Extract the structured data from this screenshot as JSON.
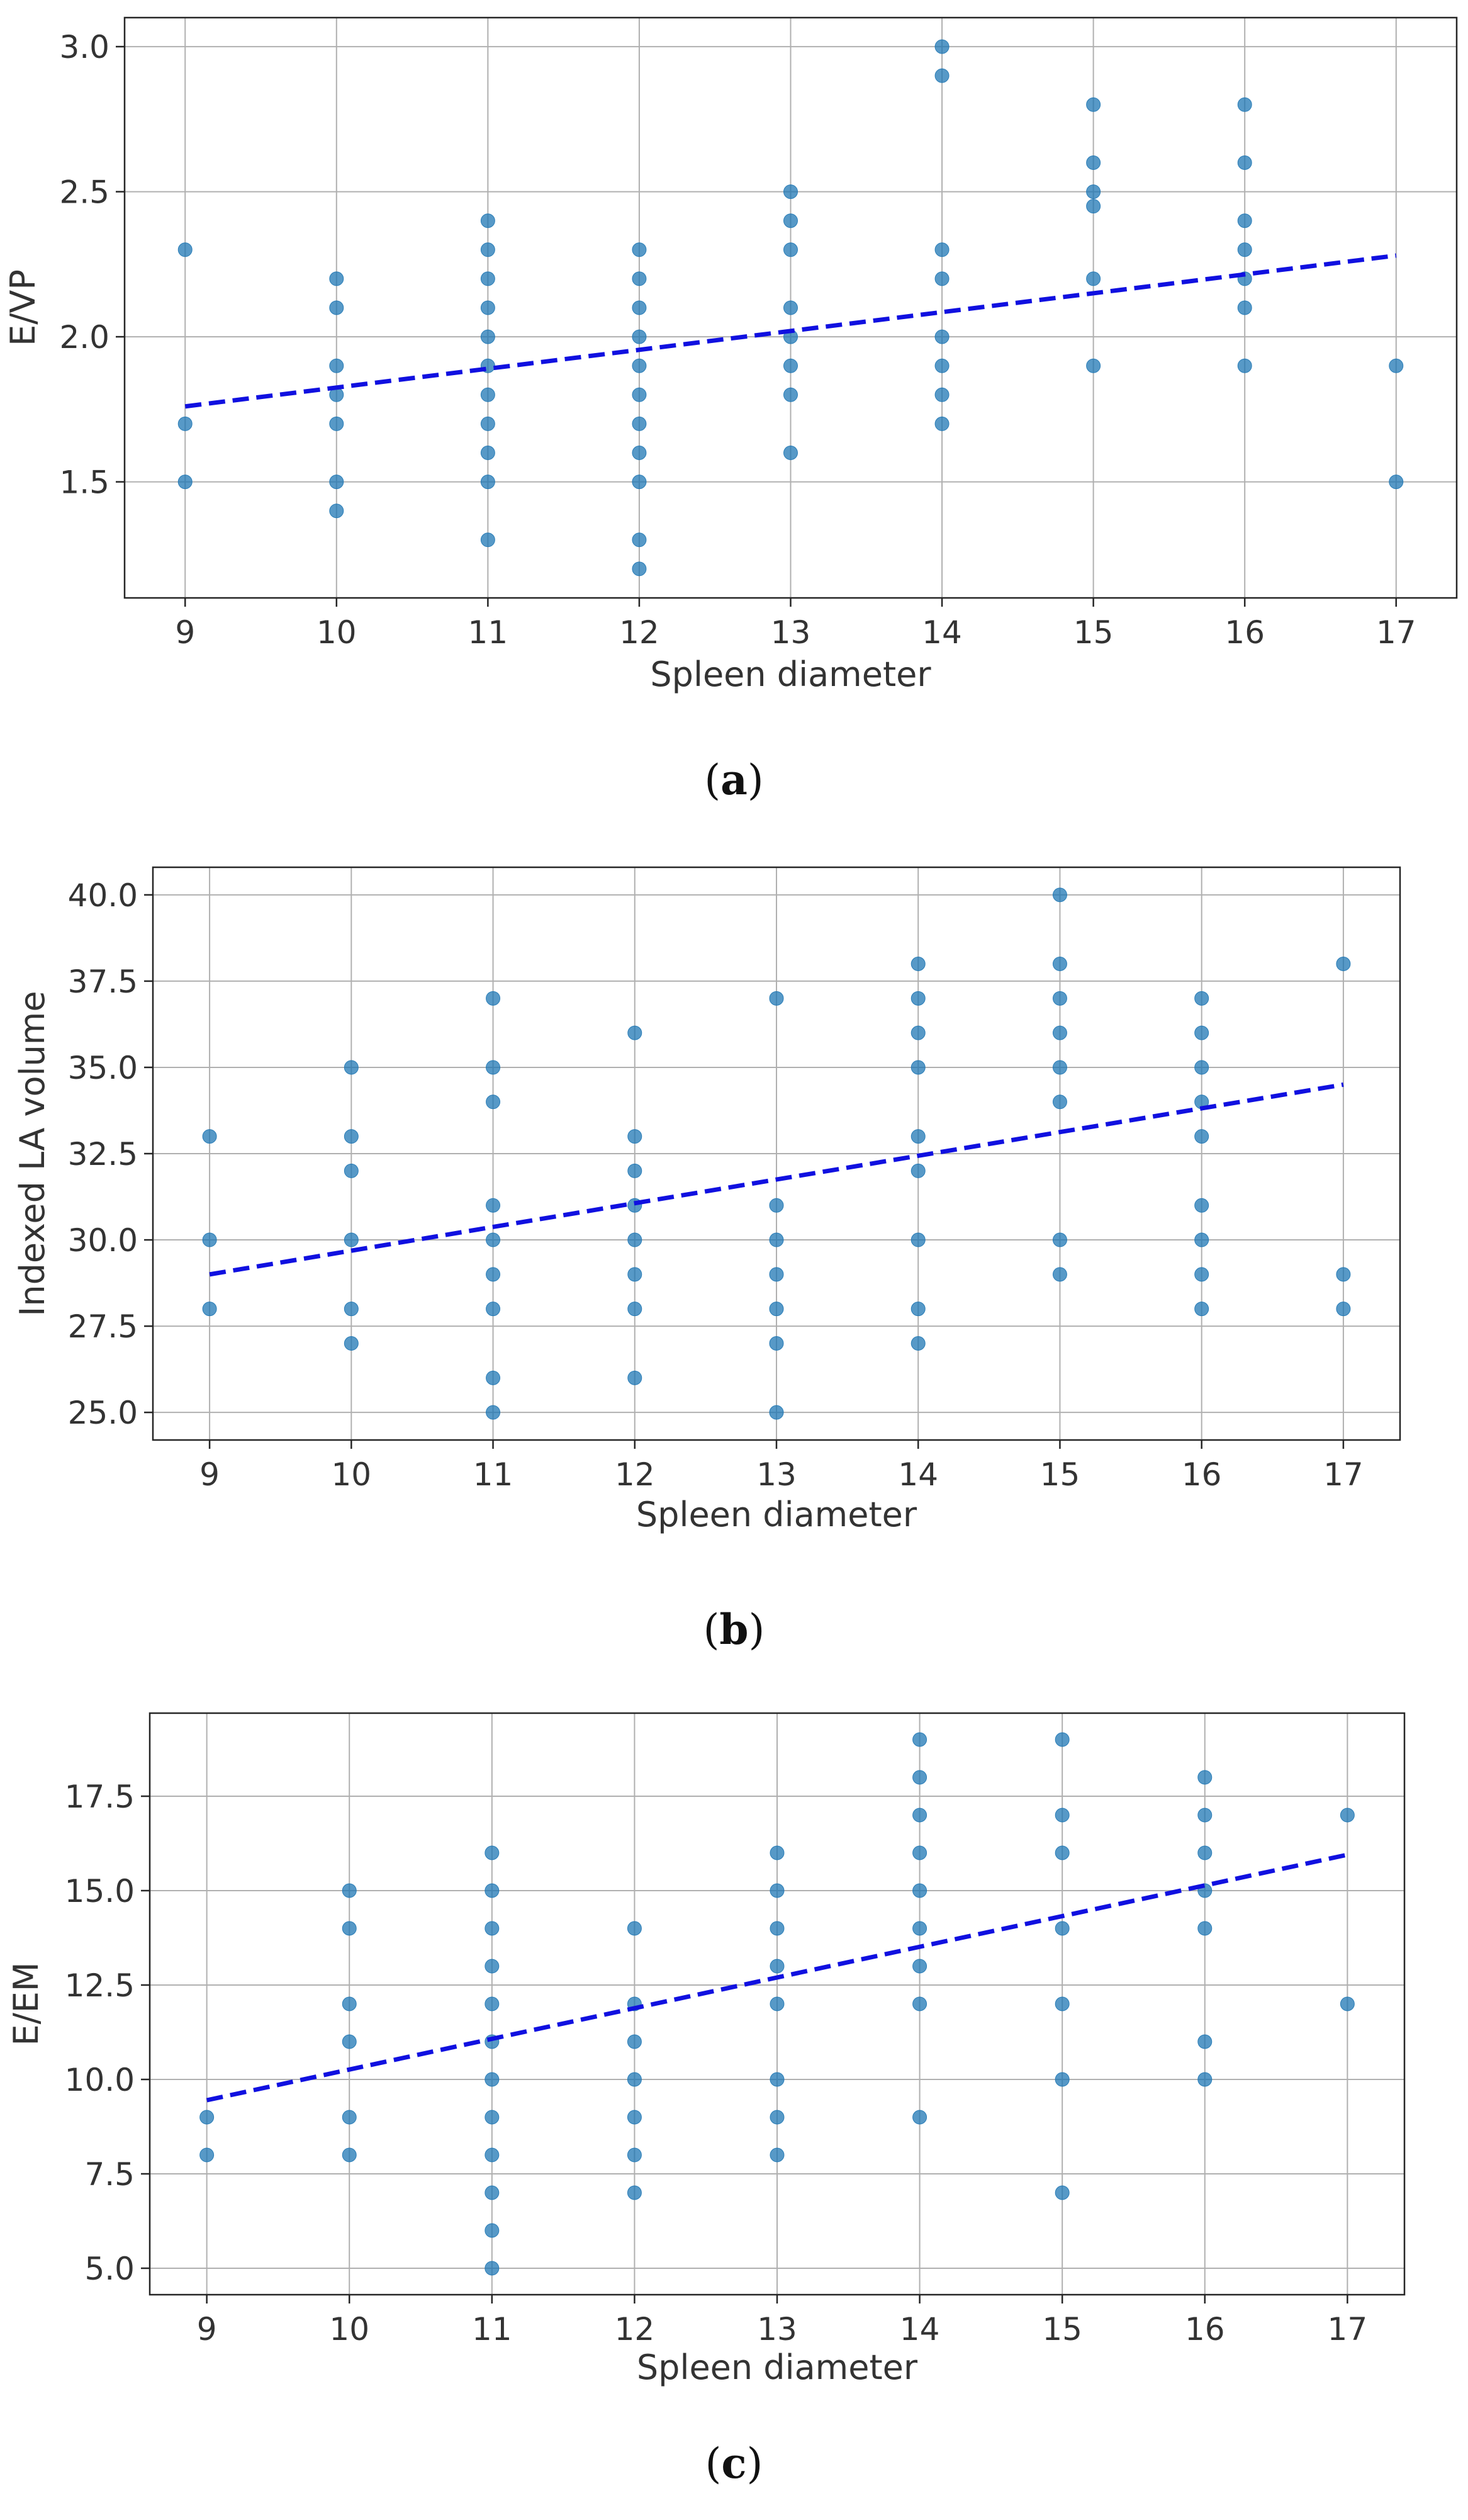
{
  "chart_data": [
    {
      "id": "a",
      "type": "scatter",
      "caption_label": "a",
      "xlabel": "Spleen diameter",
      "ylabel": "E/VP",
      "xlim": [
        8.6,
        17.4
      ],
      "ylim": [
        1.1,
        3.1
      ],
      "xticks": [
        9,
        10,
        11,
        12,
        13,
        14,
        15,
        16,
        17
      ],
      "yticks": [
        1.5,
        2.0,
        2.5,
        3.0
      ],
      "ytick_labels": [
        "1.5",
        "2.0",
        "2.5",
        "3.0"
      ],
      "trend": {
        "x": [
          9,
          17
        ],
        "y": [
          1.76,
          2.28
        ]
      },
      "points": [
        [
          9,
          2.3
        ],
        [
          9,
          1.7
        ],
        [
          9,
          1.5
        ],
        [
          10,
          2.2
        ],
        [
          10,
          2.1
        ],
        [
          10,
          1.9
        ],
        [
          10,
          1.8
        ],
        [
          10,
          1.7
        ],
        [
          10,
          1.5
        ],
        [
          10,
          1.4
        ],
        [
          11,
          2.4
        ],
        [
          11,
          2.3
        ],
        [
          11,
          2.2
        ],
        [
          11,
          2.1
        ],
        [
          11,
          2.0
        ],
        [
          11,
          1.9
        ],
        [
          11,
          1.8
        ],
        [
          11,
          1.7
        ],
        [
          11,
          1.6
        ],
        [
          11,
          1.5
        ],
        [
          11,
          1.3
        ],
        [
          12,
          2.3
        ],
        [
          12,
          2.2
        ],
        [
          12,
          2.1
        ],
        [
          12,
          2.0
        ],
        [
          12,
          1.9
        ],
        [
          12,
          1.8
        ],
        [
          12,
          1.7
        ],
        [
          12,
          1.6
        ],
        [
          12,
          1.5
        ],
        [
          12,
          1.3
        ],
        [
          12,
          1.2
        ],
        [
          13,
          2.5
        ],
        [
          13,
          2.4
        ],
        [
          13,
          2.3
        ],
        [
          13,
          2.1
        ],
        [
          13,
          2.0
        ],
        [
          13,
          1.9
        ],
        [
          13,
          1.8
        ],
        [
          13,
          1.6
        ],
        [
          14,
          3.0
        ],
        [
          14,
          2.9
        ],
        [
          14,
          2.3
        ],
        [
          14,
          2.2
        ],
        [
          14,
          2.0
        ],
        [
          14,
          1.9
        ],
        [
          14,
          1.8
        ],
        [
          14,
          1.7
        ],
        [
          15,
          2.8
        ],
        [
          15,
          2.6
        ],
        [
          15,
          2.5
        ],
        [
          15,
          2.45
        ],
        [
          15,
          2.2
        ],
        [
          15,
          1.9
        ],
        [
          16,
          2.8
        ],
        [
          16,
          2.6
        ],
        [
          16,
          2.4
        ],
        [
          16,
          2.3
        ],
        [
          16,
          2.2
        ],
        [
          16,
          2.1
        ],
        [
          16,
          1.9
        ],
        [
          17,
          1.9
        ],
        [
          17,
          1.5
        ]
      ]
    },
    {
      "id": "b",
      "type": "scatter",
      "caption_label": "b",
      "xlabel": "Spleen diameter",
      "ylabel": "Indexed LA volume",
      "xlim": [
        8.6,
        17.4
      ],
      "ylim": [
        24.2,
        40.8
      ],
      "xticks": [
        9,
        10,
        11,
        12,
        13,
        14,
        15,
        16,
        17
      ],
      "yticks": [
        25.0,
        27.5,
        30.0,
        32.5,
        35.0,
        37.5,
        40.0
      ],
      "ytick_labels": [
        "25.0",
        "27.5",
        "30.0",
        "32.5",
        "35.0",
        "37.5",
        "40.0"
      ],
      "trend": {
        "x": [
          9,
          17
        ],
        "y": [
          29.0,
          34.5
        ]
      },
      "points": [
        [
          9,
          33
        ],
        [
          9,
          30
        ],
        [
          9,
          28
        ],
        [
          10,
          35
        ],
        [
          10,
          33
        ],
        [
          10,
          32
        ],
        [
          10,
          30
        ],
        [
          10,
          28
        ],
        [
          10,
          27
        ],
        [
          11,
          37
        ],
        [
          11,
          35
        ],
        [
          11,
          34
        ],
        [
          11,
          31
        ],
        [
          11,
          30
        ],
        [
          11,
          29
        ],
        [
          11,
          28
        ],
        [
          11,
          26
        ],
        [
          11,
          25
        ],
        [
          12,
          36
        ],
        [
          12,
          33
        ],
        [
          12,
          32
        ],
        [
          12,
          31
        ],
        [
          12,
          30
        ],
        [
          12,
          29
        ],
        [
          12,
          28
        ],
        [
          12,
          26
        ],
        [
          13,
          37
        ],
        [
          13,
          31
        ],
        [
          13,
          30
        ],
        [
          13,
          29
        ],
        [
          13,
          28
        ],
        [
          13,
          27
        ],
        [
          13,
          25
        ],
        [
          14,
          38
        ],
        [
          14,
          37
        ],
        [
          14,
          36
        ],
        [
          14,
          35
        ],
        [
          14,
          33
        ],
        [
          14,
          32
        ],
        [
          14,
          30
        ],
        [
          14,
          28
        ],
        [
          14,
          27
        ],
        [
          15,
          40
        ],
        [
          15,
          38
        ],
        [
          15,
          37
        ],
        [
          15,
          36
        ],
        [
          15,
          35
        ],
        [
          15,
          34
        ],
        [
          15,
          30
        ],
        [
          15,
          29
        ],
        [
          16,
          37
        ],
        [
          16,
          36
        ],
        [
          16,
          35
        ],
        [
          16,
          34
        ],
        [
          16,
          33
        ],
        [
          16,
          31
        ],
        [
          16,
          30
        ],
        [
          16,
          29
        ],
        [
          16,
          28
        ],
        [
          17,
          38
        ],
        [
          17,
          29
        ],
        [
          17,
          28
        ]
      ]
    },
    {
      "id": "c",
      "type": "scatter",
      "caption_label": "c",
      "xlabel": "Spleen diameter",
      "ylabel": "E/EM",
      "xlim": [
        8.6,
        17.4
      ],
      "ylim": [
        4.3,
        19.7
      ],
      "xticks": [
        9,
        10,
        11,
        12,
        13,
        14,
        15,
        16,
        17
      ],
      "yticks": [
        5.0,
        7.5,
        10.0,
        12.5,
        15.0,
        17.5
      ],
      "ytick_labels": [
        "5.0",
        "7.5",
        "10.0",
        "12.5",
        "15.0",
        "17.5"
      ],
      "trend": {
        "x": [
          9,
          17
        ],
        "y": [
          9.45,
          15.95
        ]
      },
      "points": [
        [
          9,
          9
        ],
        [
          9,
          8
        ],
        [
          10,
          15
        ],
        [
          10,
          14
        ],
        [
          10,
          12
        ],
        [
          10,
          11
        ],
        [
          10,
          9
        ],
        [
          10,
          8
        ],
        [
          11,
          16
        ],
        [
          11,
          15
        ],
        [
          11,
          14
        ],
        [
          11,
          13
        ],
        [
          11,
          12
        ],
        [
          11,
          11
        ],
        [
          11,
          10
        ],
        [
          11,
          9
        ],
        [
          11,
          8
        ],
        [
          11,
          7
        ],
        [
          11,
          6
        ],
        [
          11,
          5
        ],
        [
          12,
          14
        ],
        [
          12,
          12
        ],
        [
          12,
          11
        ],
        [
          12,
          10
        ],
        [
          12,
          9
        ],
        [
          12,
          8
        ],
        [
          12,
          7
        ],
        [
          13,
          16
        ],
        [
          13,
          15
        ],
        [
          13,
          14
        ],
        [
          13,
          13
        ],
        [
          13,
          12
        ],
        [
          13,
          10
        ],
        [
          13,
          9
        ],
        [
          13,
          8
        ],
        [
          14,
          19
        ],
        [
          14,
          18
        ],
        [
          14,
          17
        ],
        [
          14,
          16
        ],
        [
          14,
          15
        ],
        [
          14,
          14
        ],
        [
          14,
          13
        ],
        [
          14,
          12
        ],
        [
          14,
          9
        ],
        [
          15,
          19
        ],
        [
          15,
          17
        ],
        [
          15,
          16
        ],
        [
          15,
          14
        ],
        [
          15,
          12
        ],
        [
          15,
          10
        ],
        [
          15,
          7
        ],
        [
          16,
          18
        ],
        [
          16,
          17
        ],
        [
          16,
          16
        ],
        [
          16,
          15
        ],
        [
          16,
          14
        ],
        [
          16,
          11
        ],
        [
          16,
          10
        ],
        [
          17,
          17
        ],
        [
          17,
          12
        ]
      ]
    }
  ]
}
